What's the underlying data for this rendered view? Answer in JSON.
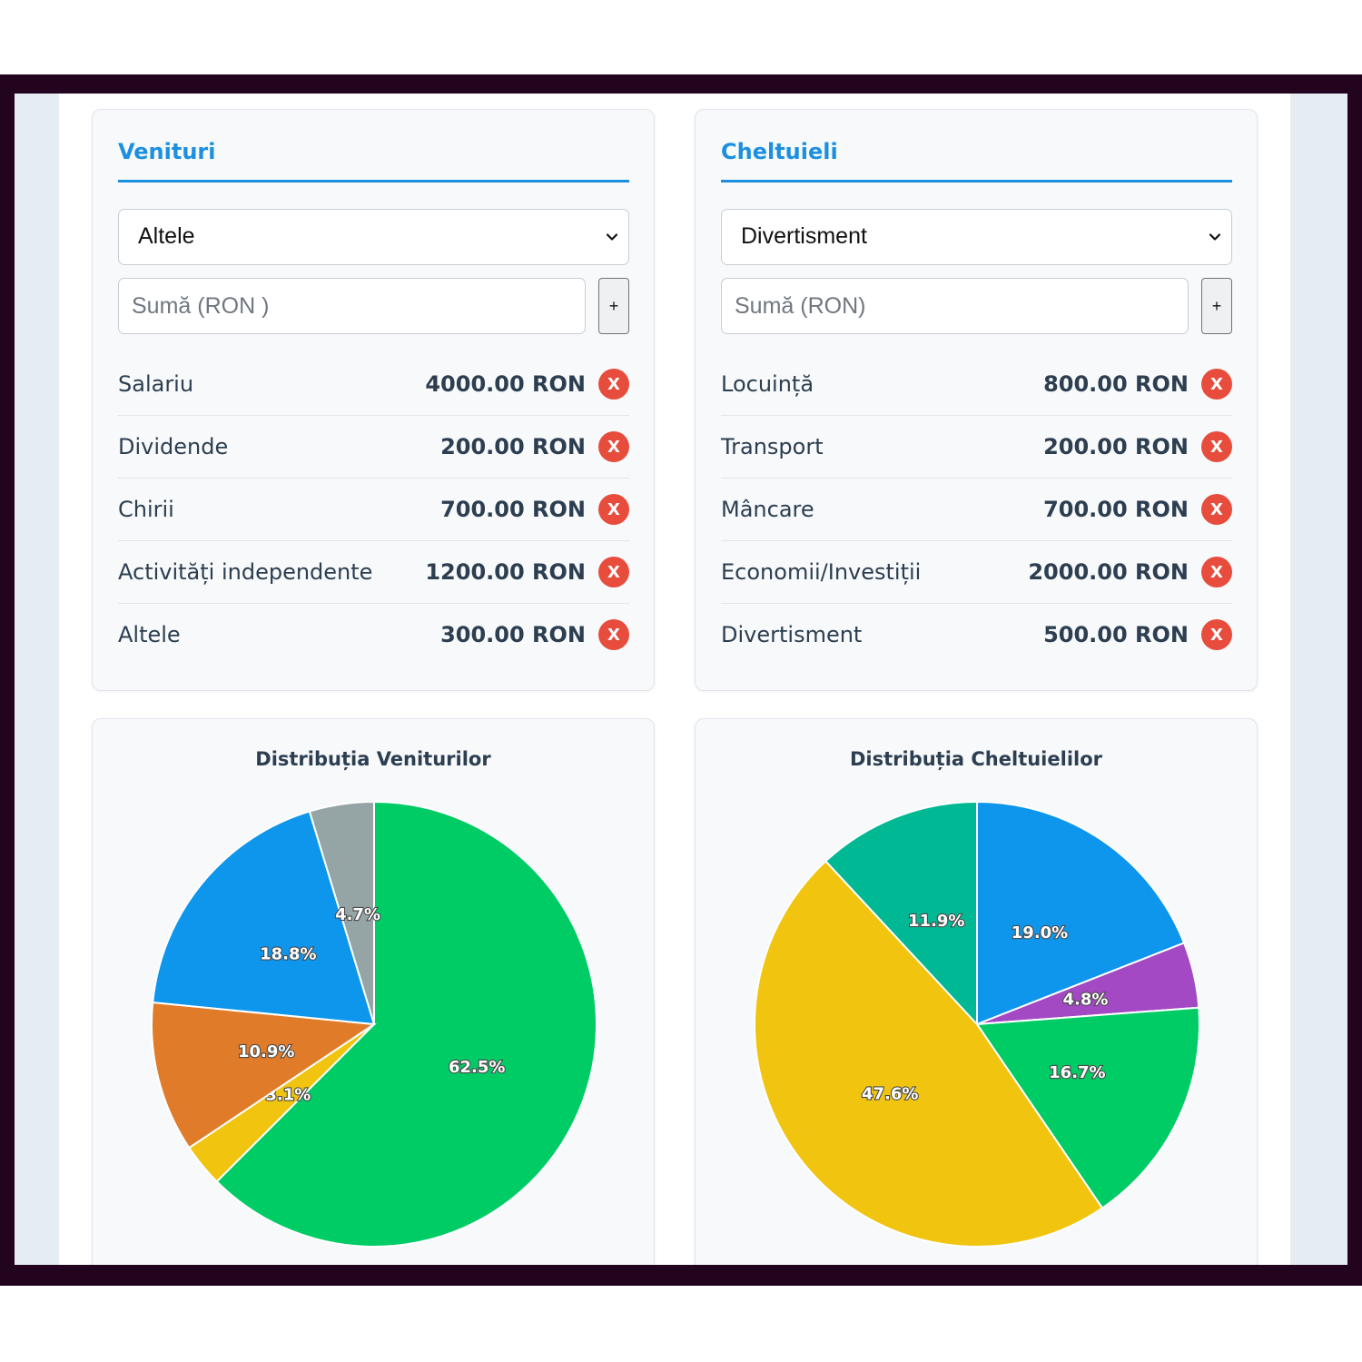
{
  "income": {
    "title": "Venituri",
    "selected_category": "Altele",
    "amount_placeholder": "Sumă (RON )",
    "add_label": "+",
    "delete_label": "X",
    "items": [
      {
        "label": "Salariu",
        "value": "4000.00 RON"
      },
      {
        "label": "Dividende",
        "value": "200.00 RON"
      },
      {
        "label": "Chirii",
        "value": "700.00 RON"
      },
      {
        "label": "Activități independente",
        "value": "1200.00 RON"
      },
      {
        "label": "Altele",
        "value": "300.00 RON"
      }
    ]
  },
  "expenses": {
    "title": "Cheltuieli",
    "selected_category": "Divertisment",
    "amount_placeholder": "Sumă (RON)",
    "add_label": "+",
    "delete_label": "X",
    "items": [
      {
        "label": "Locuință",
        "value": "800.00 RON"
      },
      {
        "label": "Transport",
        "value": "200.00 RON"
      },
      {
        "label": "Mâncare",
        "value": "700.00 RON"
      },
      {
        "label": "Economii/Investiții",
        "value": "2000.00 RON"
      },
      {
        "label": "Divertisment",
        "value": "500.00 RON"
      }
    ]
  },
  "colors": {
    "accent": "#1c8fe0",
    "delete": "#e74c3c"
  },
  "icons": {
    "select_arrow": "chevron-down-icon",
    "delete": "close-icon"
  },
  "chart_data": [
    {
      "type": "pie",
      "title": "Distribuția Veniturilor",
      "categories": [
        "Salariu",
        "Dividende",
        "Chirii",
        "Activități independente",
        "Altele"
      ],
      "values": [
        4000,
        200,
        700,
        1200,
        300
      ],
      "labels": [
        "62.5%",
        "3.1%",
        "10.9%",
        "18.8%",
        "4.7%"
      ],
      "colors": [
        "#00cc66",
        "#f1c40f",
        "#e07b2a",
        "#0e96ec",
        "#95a5a6"
      ]
    },
    {
      "type": "pie",
      "title": "Distribuția Cheltuielilor",
      "categories": [
        "Locuință",
        "Transport",
        "Mâncare",
        "Economii/Investiții",
        "Divertisment"
      ],
      "values": [
        800,
        200,
        700,
        2000,
        500
      ],
      "labels": [
        "19.0%",
        "4.8%",
        "16.7%",
        "47.6%",
        "11.9%"
      ],
      "colors": [
        "#0e96ec",
        "#a349c4",
        "#00cc66",
        "#f1c40f",
        "#00b894"
      ]
    }
  ]
}
